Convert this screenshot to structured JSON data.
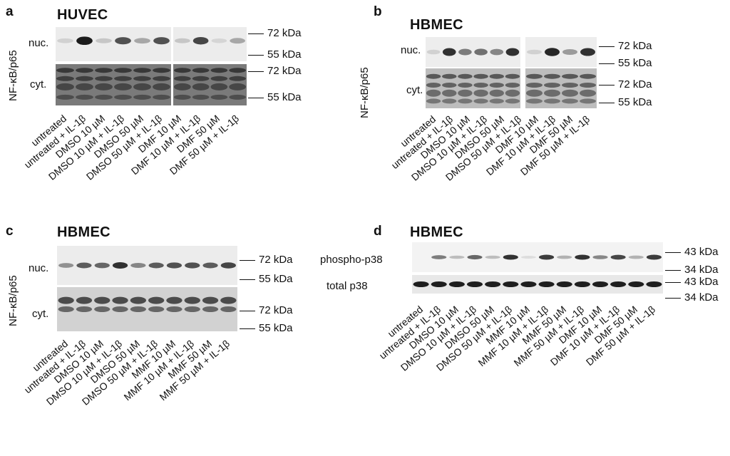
{
  "panels": {
    "a": {
      "letter": "a",
      "title": "HUVEC",
      "ylabel": "NF-κB/p65",
      "rows": [
        "nuc.",
        "cyt."
      ],
      "markers": [
        "72 kDa",
        "55 kDa",
        "72 kDa",
        "55 kDa"
      ],
      "lanes": [
        "untreated",
        "untreated + IL-1β",
        "DMSO 10 µM",
        "DMSO 10 µM + IL-1β",
        "DMSO 50 µM",
        "DMSO 50 µM + IL-1β",
        "DMF 10 µM",
        "DMF 10 µM + IL-1β",
        "DMF 50 µM",
        "DMF 50 µM + IL-1β"
      ]
    },
    "b": {
      "letter": "b",
      "title": "HBMEC",
      "ylabel": "NF-κB/p65",
      "rows": [
        "nuc.",
        "cyt."
      ],
      "markers": [
        "72 kDa",
        "55 kDa",
        "72 kDa",
        "55 kDa"
      ],
      "lanes": [
        "untreated",
        "untreated + IL-1β",
        "DMSO 10 µM",
        "DMSO 10 µM + IL-1β",
        "DMSO 50 µM",
        "DMSO 50 µM + IL-1β",
        "DMF 10 µM",
        "DMF 10 µM + IL-1β",
        "DMF 50 µM",
        "DMF 50 µM + IL-1β"
      ]
    },
    "c": {
      "letter": "c",
      "title": "HBMEC",
      "ylabel": "NF-κB/p65",
      "rows": [
        "nuc.",
        "cyt."
      ],
      "markers": [
        "72 kDa",
        "55 kDa",
        "72 kDa",
        "55 kDa"
      ],
      "lanes": [
        "untreated",
        "untreated + IL-1β",
        "DMSO 10 µM",
        "DMSO 10 µM + IL-1β",
        "DMSO 50 µM",
        "DMSO 50 µM + IL-1β",
        "MMF 10 µM",
        "MMF 10 µM + IL-1β",
        "MMF 50 µM",
        "MMF 50 µM + IL-1β"
      ]
    },
    "d": {
      "letter": "d",
      "title": "HBMEC",
      "rows": [
        "phospho-p38",
        "total p38"
      ],
      "markers": [
        "43 kDa",
        "34 kDa",
        "43 kDa",
        "34 kDa"
      ],
      "lanes": [
        "untreated",
        "untreated + IL-1β",
        "DMSO 10 µM",
        "DMSO 10 µM + IL-1β",
        "DMSO 50 µM",
        "DMSO 50 µM + IL-1β",
        "MMF 10 µM",
        "MMF 10 µM + IL-1β",
        "MMF 50 µM",
        "MMF 50 µM + IL-1β",
        "DMF 10 µM",
        "DMF 10 µM + IL-1β",
        "DMF 50 µM",
        "DMF 50 µM + IL-1β"
      ]
    }
  },
  "band_intensity": {
    "a_nuc": [
      0.1,
      0.95,
      0.15,
      0.7,
      0.3,
      0.7,
      0.15,
      0.75,
      0.08,
      0.3
    ],
    "b_nuc": [
      0.1,
      0.85,
      0.5,
      0.55,
      0.45,
      0.85,
      0.1,
      0.9,
      0.35,
      0.85
    ],
    "c_nuc": [
      0.4,
      0.65,
      0.6,
      0.85,
      0.45,
      0.65,
      0.7,
      0.7,
      0.65,
      0.75
    ],
    "d_phos": [
      0.0,
      0.5,
      0.2,
      0.6,
      0.2,
      0.85,
      0.05,
      0.8,
      0.25,
      0.85,
      0.45,
      0.75,
      0.25,
      0.8
    ]
  }
}
